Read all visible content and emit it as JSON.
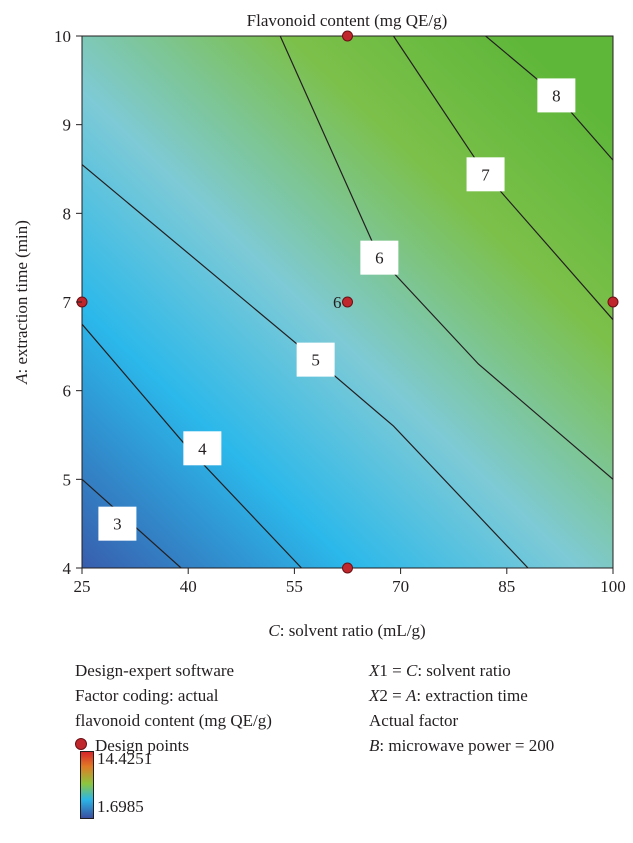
{
  "chart_data": {
    "type": "contour",
    "title": "Flavonoid content (mg QE/g)",
    "x_axis": {
      "label_italic": "C",
      "label_rest": ": solvent ratio (mL/g)",
      "range": [
        25,
        100
      ],
      "ticks": [
        25,
        40,
        55,
        70,
        85,
        100
      ],
      "tick_labels": [
        "25",
        "40",
        "55",
        "70",
        "85",
        "100"
      ]
    },
    "y_axis": {
      "label_italic": "A",
      "label_rest": ": extraction time (min)",
      "range": [
        4,
        10
      ],
      "ticks": [
        4,
        5,
        6,
        7,
        8,
        9,
        10
      ],
      "tick_labels": [
        "4",
        "5",
        "6",
        "7",
        "8",
        "9",
        "10"
      ]
    },
    "contours": [
      {
        "level": 3,
        "label": "3",
        "label_at": [
          30,
          4.5
        ],
        "points": [
          [
            25,
            5.0
          ],
          [
            39,
            4.0
          ]
        ]
      },
      {
        "level": 4,
        "label": "4",
        "label_at": [
          42,
          5.35
        ],
        "points": [
          [
            25,
            6.75
          ],
          [
            40,
            5.35
          ],
          [
            56,
            4.0
          ]
        ]
      },
      {
        "level": 5,
        "label": "5",
        "label_at": [
          58,
          6.35
        ],
        "points": [
          [
            25,
            8.55
          ],
          [
            58,
            6.35
          ],
          [
            69,
            5.6
          ],
          [
            88,
            4.0
          ]
        ]
      },
      {
        "level": 6,
        "label": "6",
        "label_at": [
          67,
          7.5
        ],
        "points": [
          [
            53,
            10.0
          ],
          [
            67,
            7.5
          ],
          [
            81,
            6.3
          ],
          [
            100,
            5.0
          ]
        ]
      },
      {
        "level": 7,
        "label": "7",
        "label_at": [
          82,
          8.44
        ],
        "points": [
          [
            69,
            10.0
          ],
          [
            82,
            8.44
          ],
          [
            100,
            6.8
          ]
        ]
      },
      {
        "level": 8,
        "label": "8",
        "label_at": [
          92,
          9.33
        ],
        "points": [
          [
            82,
            10.0
          ],
          [
            92,
            9.33
          ],
          [
            100,
            8.6
          ]
        ]
      }
    ],
    "design_points": [
      [
        62.5,
        10
      ],
      [
        25,
        7
      ],
      [
        62.5,
        7
      ],
      [
        100,
        7
      ],
      [
        62.5,
        4
      ]
    ],
    "center_point_count_label": "6",
    "center_point_count_at": [
      62.5,
      7
    ],
    "colors": {
      "low": "#3a52a5",
      "mid": "#2bb8ea",
      "mid2": "#7ecad6",
      "high": "#7cc04a",
      "top": "#5fb73a",
      "contour_line": "#231f20",
      "design_point": "#c0272d"
    }
  },
  "info": {
    "software": "Design-expert software",
    "factor_coding": "Factor coding: actual",
    "response": "flavonoid content (mg QE/g)",
    "legend_label": "Design points",
    "colorbar_max": "14.4251",
    "colorbar_min": "1.6985",
    "x1_def_prefix": "X1 = ",
    "x1_def_var": "C",
    "x1_def_rest": ": solvent ratio",
    "x2_def_prefix": "X2 = ",
    "x2_def_var": "A",
    "x2_def_rest": ": extraction time",
    "actual_factor": "Actual factor",
    "b_var": "B",
    "b_rest": ": microwave power = 200"
  }
}
